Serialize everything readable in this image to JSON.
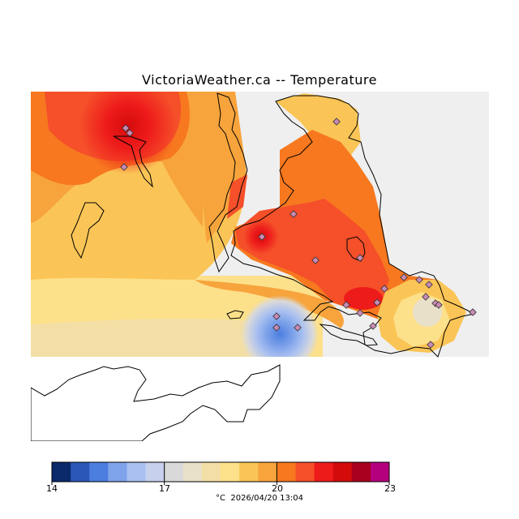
{
  "header": {
    "title": "VictoriaWeather.ca -- Temperature"
  },
  "legend": {
    "unit": "°C",
    "timestamp": "2026/04/20 13:04",
    "ticks": [
      "14",
      "17",
      "20",
      "23"
    ],
    "range": [
      14,
      23
    ],
    "colors": [
      "#0a2a6b",
      "#2a57b8",
      "#4c7ee0",
      "#7fa3ea",
      "#a9c0f0",
      "#c7d0ec",
      "#d9d9d9",
      "#e8e0c8",
      "#f3dfa6",
      "#fde08a",
      "#fac556",
      "#f7a43c",
      "#f7781f",
      "#f5502a",
      "#ee1b1b",
      "#d40b0b",
      "#a8001e",
      "#b5007d"
    ]
  },
  "map": {
    "colors": {
      "ocean": "#efefef",
      "land_outline": "#000000",
      "no_data": "#ffffff",
      "station_marker": "#c88ab4"
    },
    "station_count": 24
  }
}
